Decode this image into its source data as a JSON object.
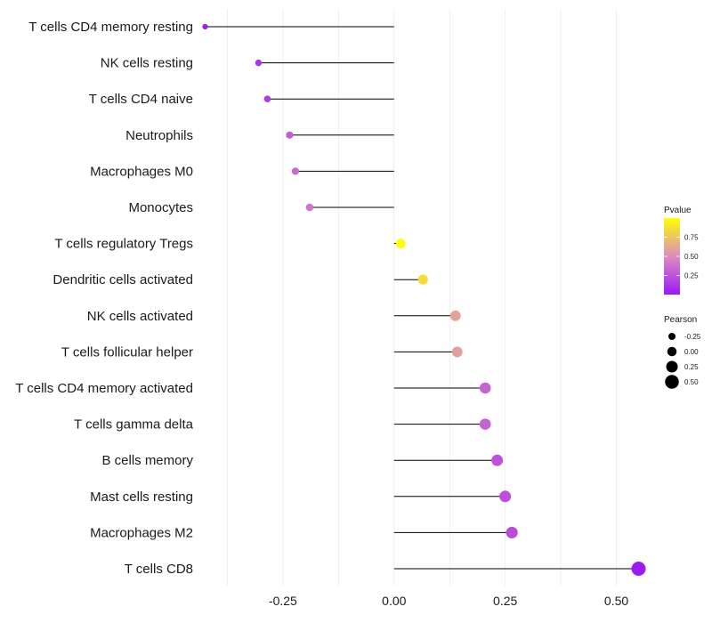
{
  "chart_data": {
    "type": "lollipop",
    "title": "",
    "xlabel": "",
    "ylabel": "",
    "xlim": [
      -0.43,
      0.575
    ],
    "x_ticks": [
      -0.25,
      0.0,
      0.25,
      0.5
    ],
    "x_tick_labels": [
      "-0.25",
      "0.00",
      "0.25",
      "0.50"
    ],
    "grid": true,
    "categories": [
      "T cells CD4 memory resting",
      "NK cells resting",
      "T cells CD4 naive",
      "Neutrophils",
      "Macrophages M0",
      "Monocytes",
      "T cells regulatory  Tregs ",
      "Dendritic cells activated",
      "NK cells activated",
      "T cells follicular helper",
      "T cells CD4 memory activated",
      "T cells gamma delta",
      "B cells memory",
      "Mast cells resting",
      "Macrophages M2",
      "T cells CD8"
    ],
    "pearson": [
      -0.425,
      -0.305,
      -0.285,
      -0.235,
      -0.222,
      -0.19,
      0.015,
      0.065,
      0.138,
      0.142,
      0.205,
      0.205,
      0.232,
      0.25,
      0.265,
      0.55
    ],
    "pvalue": [
      0.02,
      0.12,
      0.15,
      0.3,
      0.35,
      0.4,
      0.99,
      0.85,
      0.6,
      0.58,
      0.32,
      0.32,
      0.25,
      0.24,
      0.22,
      0.01
    ],
    "legend_color": {
      "title": "Pvalue",
      "labels": [
        "0.75",
        "0.50",
        "0.25"
      ],
      "values": [
        0.75,
        0.5,
        0.25
      ],
      "range": [
        0.0,
        1.0
      ],
      "low_color": "#9b19f5",
      "mid_color": "#dc8cbf",
      "high_color": "#ffff00"
    },
    "legend_size": {
      "title": "Pearson",
      "labels": [
        "-0.25",
        "0.00",
        "0.25",
        "0.50"
      ],
      "values": [
        -0.25,
        0.0,
        0.25,
        0.5
      ]
    },
    "legend_position": "right"
  }
}
